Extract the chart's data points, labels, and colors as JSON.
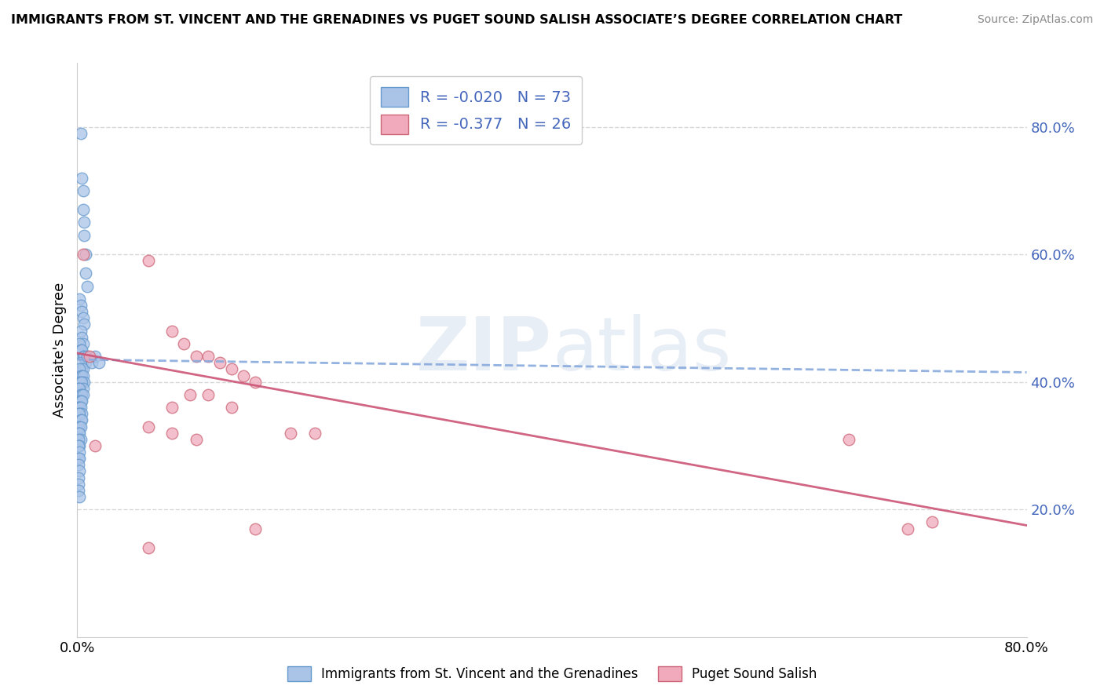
{
  "title": "IMMIGRANTS FROM ST. VINCENT AND THE GRENADINES VS PUGET SOUND SALISH ASSOCIATE’S DEGREE CORRELATION CHART",
  "source": "Source: ZipAtlas.com",
  "ylabel": "Associate's Degree",
  "right_yticks": [
    "20.0%",
    "40.0%",
    "60.0%",
    "80.0%"
  ],
  "right_ytick_vals": [
    0.2,
    0.4,
    0.6,
    0.8
  ],
  "xlim": [
    0.0,
    0.8
  ],
  "ylim": [
    0.0,
    0.9
  ],
  "legend1_r": "-0.020",
  "legend1_n": "73",
  "legend2_r": "-0.377",
  "legend2_n": "26",
  "blue_color": "#aac4e8",
  "blue_edge_color": "#6699cc",
  "pink_color": "#f0aabb",
  "pink_edge_color": "#cc6677",
  "blue_line_color": "#88aadd",
  "pink_line_color": "#cc5577",
  "legend_text_color": "#4466bb",
  "watermark_color": "#e8eef5",
  "blue_x": [
    0.003,
    0.004,
    0.005,
    0.005,
    0.006,
    0.006,
    0.007,
    0.007,
    0.008,
    0.002,
    0.003,
    0.004,
    0.005,
    0.006,
    0.003,
    0.004,
    0.005,
    0.002,
    0.003,
    0.004,
    0.005,
    0.006,
    0.007,
    0.003,
    0.004,
    0.005,
    0.002,
    0.003,
    0.004,
    0.005,
    0.006,
    0.002,
    0.003,
    0.004,
    0.005,
    0.001,
    0.002,
    0.003,
    0.004,
    0.005,
    0.002,
    0.003,
    0.004,
    0.001,
    0.002,
    0.003,
    0.004,
    0.001,
    0.002,
    0.003,
    0.004,
    0.001,
    0.002,
    0.003,
    0.001,
    0.002,
    0.003,
    0.001,
    0.002,
    0.001,
    0.002,
    0.001,
    0.002,
    0.001,
    0.002,
    0.001,
    0.001,
    0.001,
    0.002,
    0.008,
    0.012,
    0.015,
    0.018
  ],
  "blue_y": [
    0.79,
    0.72,
    0.7,
    0.67,
    0.65,
    0.63,
    0.6,
    0.57,
    0.55,
    0.53,
    0.52,
    0.51,
    0.5,
    0.49,
    0.48,
    0.47,
    0.46,
    0.46,
    0.45,
    0.45,
    0.44,
    0.44,
    0.43,
    0.43,
    0.42,
    0.42,
    0.42,
    0.41,
    0.41,
    0.41,
    0.4,
    0.4,
    0.4,
    0.4,
    0.39,
    0.39,
    0.39,
    0.38,
    0.38,
    0.38,
    0.37,
    0.37,
    0.37,
    0.36,
    0.36,
    0.36,
    0.35,
    0.35,
    0.35,
    0.34,
    0.34,
    0.33,
    0.33,
    0.33,
    0.32,
    0.32,
    0.31,
    0.31,
    0.3,
    0.3,
    0.29,
    0.28,
    0.28,
    0.27,
    0.26,
    0.25,
    0.24,
    0.23,
    0.22,
    0.44,
    0.43,
    0.44,
    0.43
  ],
  "pink_x": [
    0.005,
    0.01,
    0.015,
    0.06,
    0.08,
    0.09,
    0.1,
    0.11,
    0.12,
    0.13,
    0.14,
    0.15,
    0.08,
    0.095,
    0.11,
    0.13,
    0.06,
    0.08,
    0.18,
    0.2,
    0.06,
    0.1,
    0.15,
    0.65,
    0.7,
    0.72
  ],
  "pink_y": [
    0.6,
    0.44,
    0.3,
    0.59,
    0.48,
    0.46,
    0.44,
    0.44,
    0.43,
    0.42,
    0.41,
    0.4,
    0.36,
    0.38,
    0.38,
    0.36,
    0.33,
    0.32,
    0.32,
    0.32,
    0.14,
    0.31,
    0.17,
    0.31,
    0.17,
    0.18
  ],
  "blue_trend_x0": 0.0,
  "blue_trend_x1": 0.8,
  "blue_trend_y0": 0.435,
  "blue_trend_y1": 0.415,
  "pink_trend_x0": 0.0,
  "pink_trend_x1": 0.8,
  "pink_trend_y0": 0.445,
  "pink_trend_y1": 0.175
}
